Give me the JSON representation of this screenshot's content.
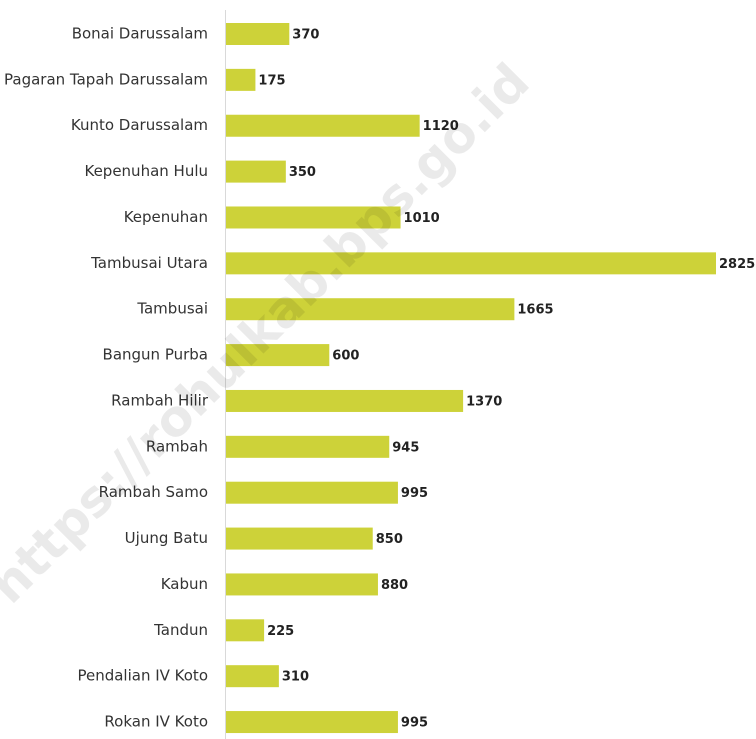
{
  "chart_data": {
    "type": "hbar",
    "categories": [
      "Bonai Darussalam",
      "Pagaran Tapah Darussalam",
      "Kunto Darussalam",
      "Kepenuhan Hulu",
      "Kepenuhan",
      "Tambusai Utara",
      "Tambusai",
      "Bangun Purba",
      "Rambah Hilir",
      "Rambah",
      "Rambah Samo",
      "Ujung Batu",
      "Kabun",
      "Tandun",
      "Pendalian IV Koto",
      "Rokan IV Koto"
    ],
    "values": [
      370,
      175,
      1120,
      350,
      1010,
      2825,
      1665,
      600,
      1370,
      945,
      995,
      850,
      880,
      225,
      310,
      995
    ],
    "color": "#cdd239",
    "watermark": "https://rohulkab.bps.go.id"
  }
}
